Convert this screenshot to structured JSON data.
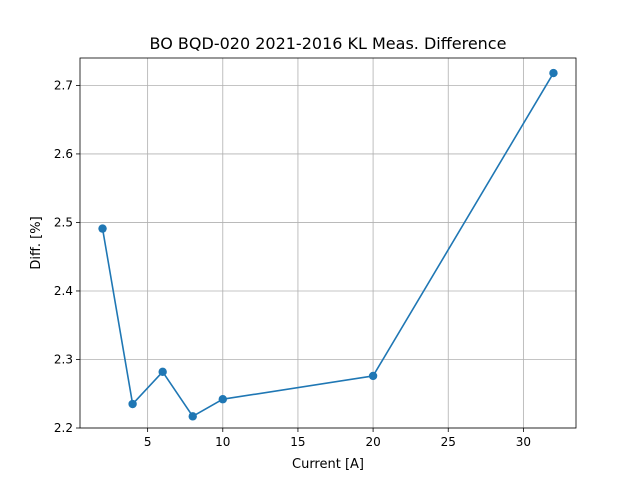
{
  "chart_data": {
    "type": "line",
    "title": "BO BQD-020 2021-2016 KL Meas. Difference",
    "xlabel": "Current [A]",
    "ylabel": "Diff. [%]",
    "xlim": [
      0.5,
      33.5
    ],
    "ylim": [
      2.2,
      2.74
    ],
    "x_ticks": [
      5,
      10,
      15,
      20,
      25,
      30
    ],
    "y_ticks": [
      2.2,
      2.3,
      2.4,
      2.5,
      2.6,
      2.7
    ],
    "grid": true,
    "series": [
      {
        "color": "#1f77b4",
        "marker": "circle",
        "x": [
          2,
          4,
          6,
          8,
          10,
          20,
          32
        ],
        "y": [
          2.491,
          2.235,
          2.282,
          2.217,
          2.242,
          2.276,
          2.718
        ]
      }
    ]
  }
}
